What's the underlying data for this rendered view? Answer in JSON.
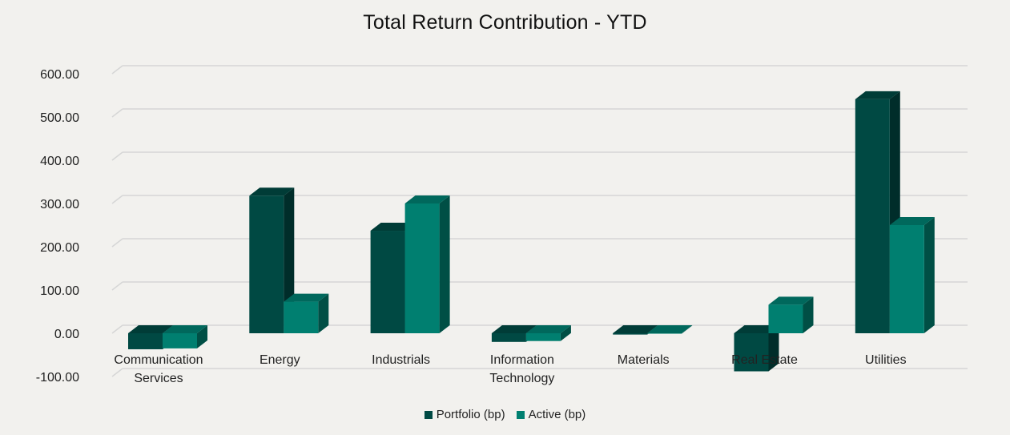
{
  "chart_data": {
    "type": "bar",
    "title": "Total Return Contribution - YTD",
    "xlabel": "",
    "ylabel": "",
    "ylim": [
      -100,
      600
    ],
    "yticks": [
      "600.00",
      "500.00",
      "400.00",
      "300.00",
      "200.00",
      "100.00",
      "0.00",
      "-100.00"
    ],
    "categories": [
      [
        "Communication",
        "Services"
      ],
      [
        "Energy"
      ],
      [
        "Industrials"
      ],
      [
        "Information",
        "Technology"
      ],
      [
        "Materials"
      ],
      [
        "Real Estate"
      ],
      [
        "Utilities"
      ]
    ],
    "series": [
      {
        "name": "Portfolio (bp)",
        "color": "#004943",
        "values": [
          -37,
          318,
          237,
          -20,
          -3,
          -88,
          541
        ]
      },
      {
        "name": "Active (bp)",
        "color": "#007f70",
        "values": [
          -35,
          73,
          300,
          -18,
          -1,
          66,
          250
        ]
      }
    ],
    "grid": true,
    "legend_position": "bottom"
  }
}
